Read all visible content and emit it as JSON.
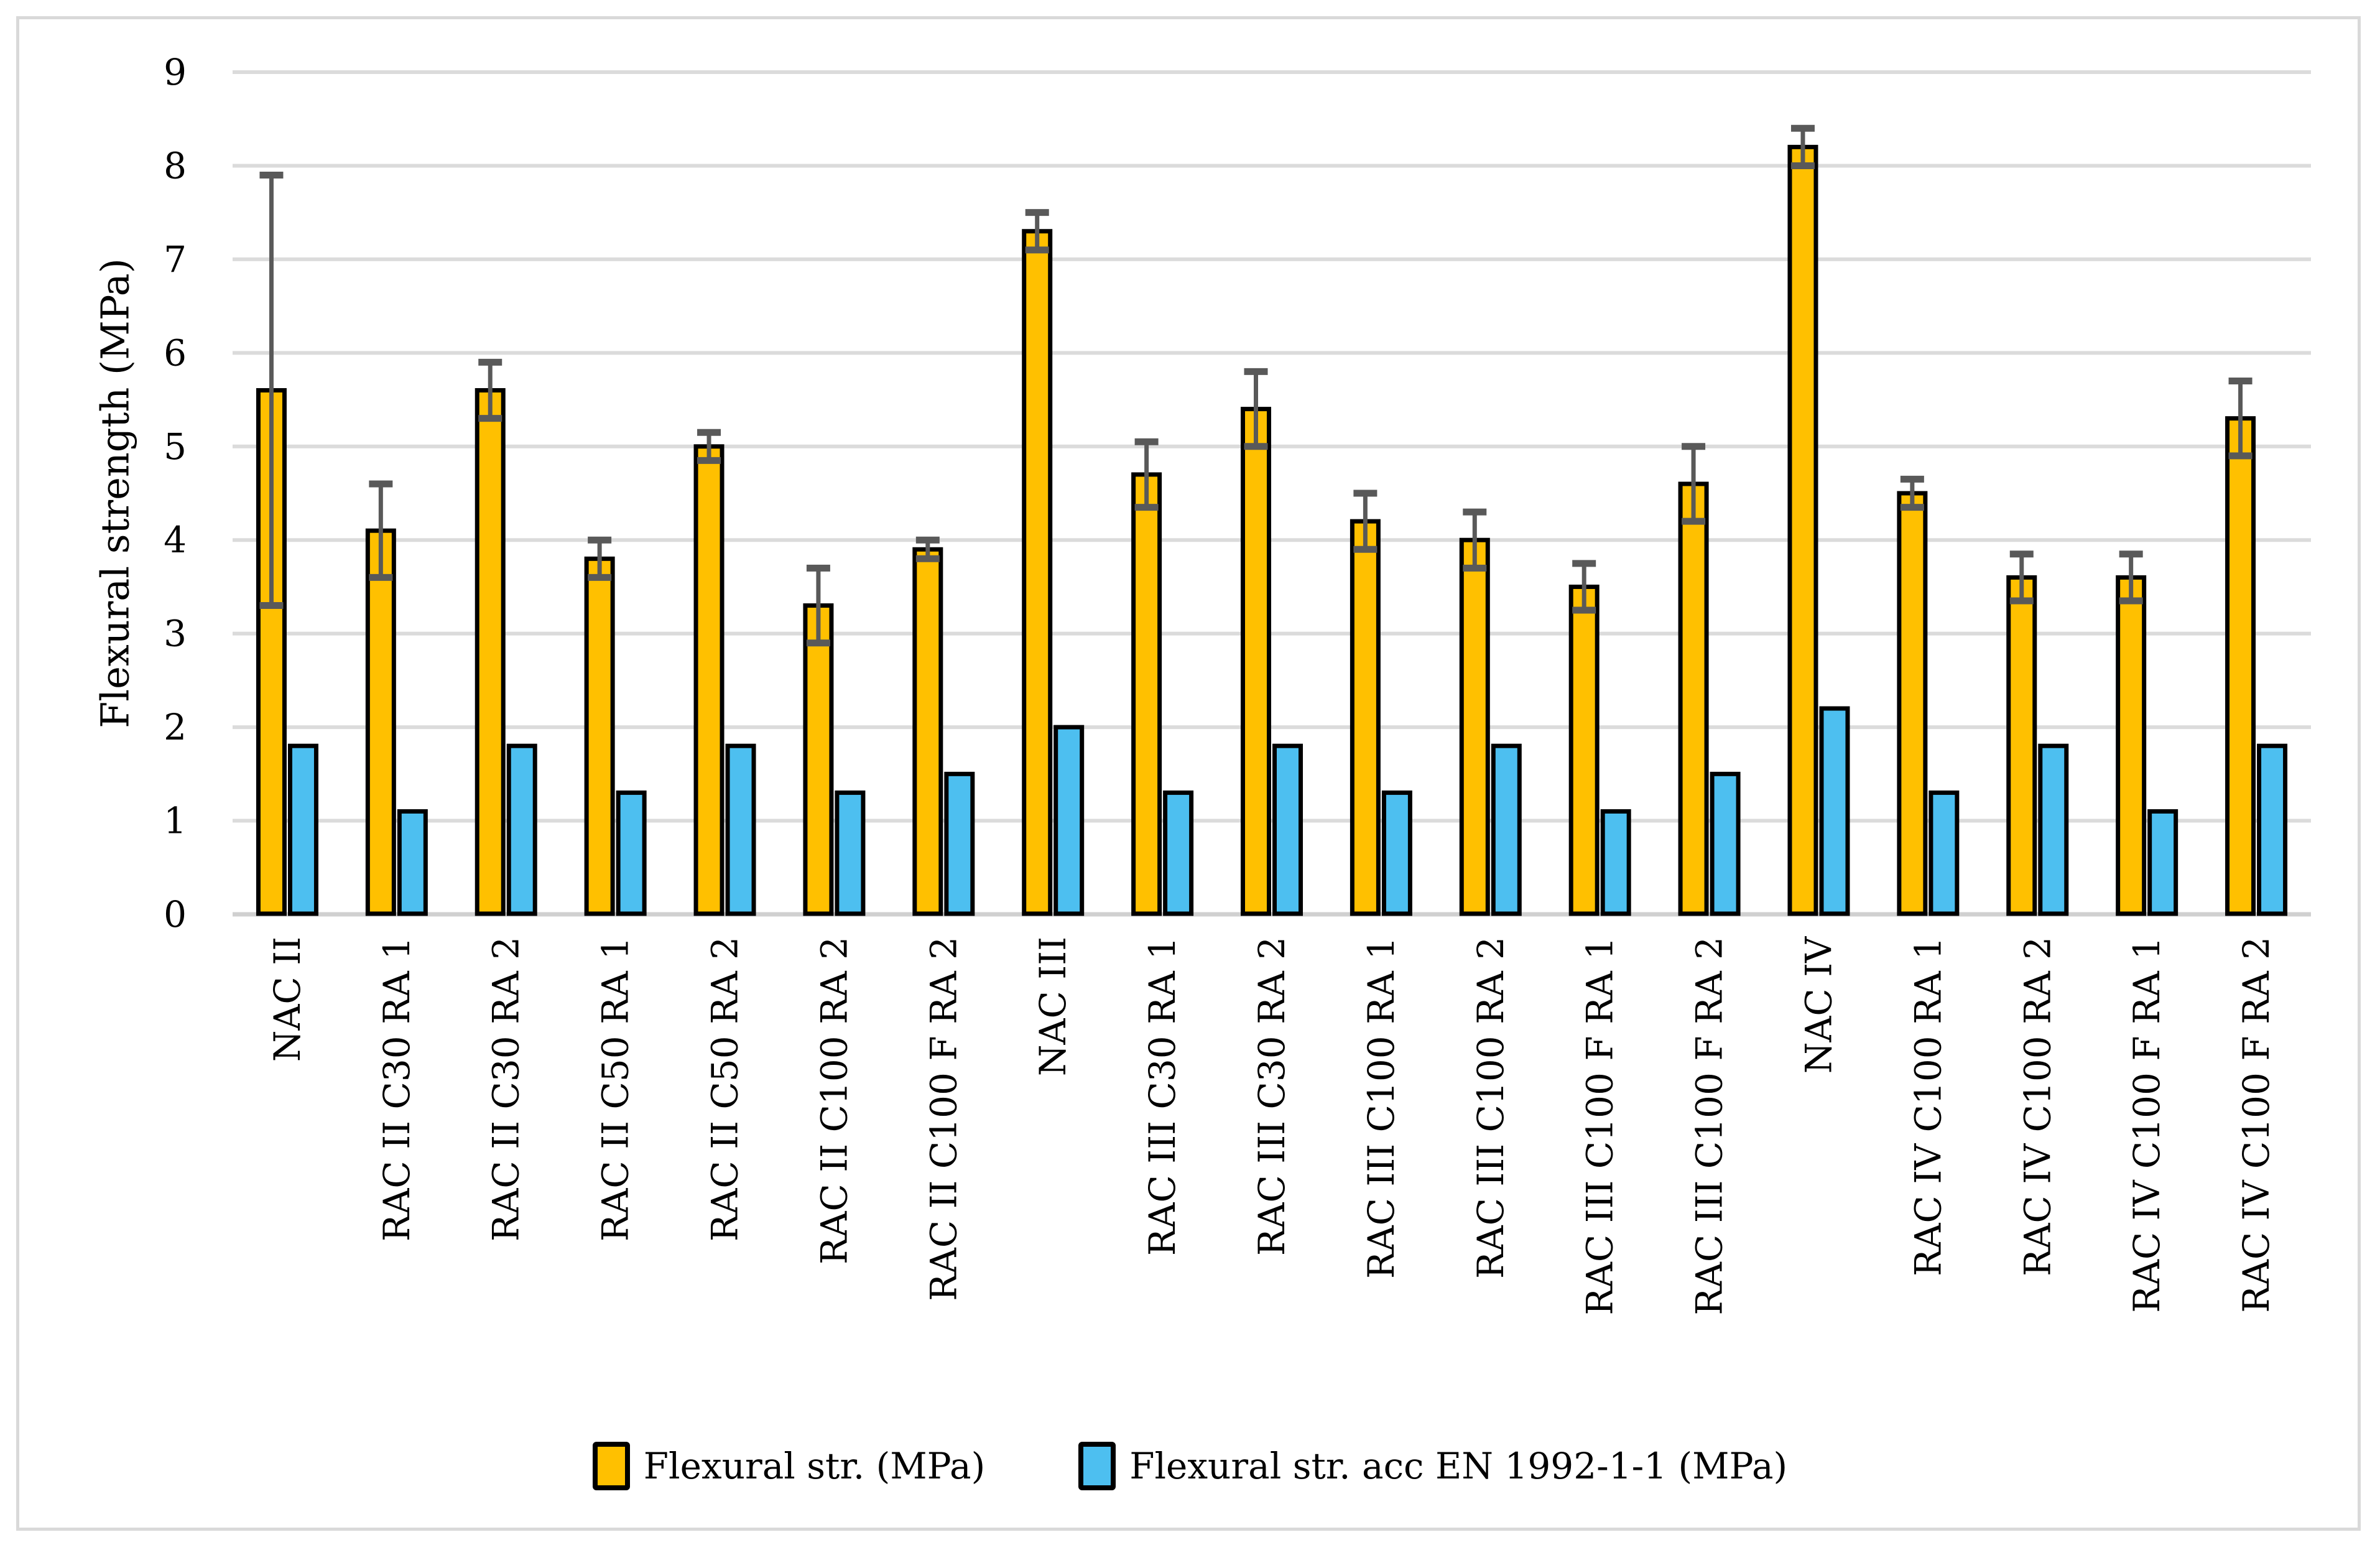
{
  "chart_data": {
    "type": "bar",
    "title": "",
    "xlabel": "",
    "ylabel": "Flexural strength (MPa)",
    "ylim": [
      0,
      9
    ],
    "yticks": [
      0,
      1,
      2,
      3,
      4,
      5,
      6,
      7,
      8,
      9
    ],
    "grid": true,
    "legend_position": "bottom",
    "categories": [
      "NAC II",
      "RAC II C30 RA 1",
      "RAC II C30 RA 2",
      "RAC II C50 RA 1",
      "RAC II C50 RA 2",
      "RAC II C100 RA 2",
      "RAC II C100 F RA 2",
      "NAC III",
      "RAC III C30 RA 1",
      "RAC III C30 RA 2",
      "RAC III C100 RA 1",
      "RAC III C100 RA 2",
      "RAC III C100 F RA 1",
      "RAC III C100 F RA 2",
      "NAC IV",
      "RAC IV C100 RA 1",
      "RAC IV C100 RA 2",
      "RAC IV C100 F RA 1",
      "RAC IV C100 F RA 2"
    ],
    "series": [
      {
        "name": "Flexural str. (MPa)",
        "color": "#FFC000",
        "values": [
          5.6,
          4.1,
          5.6,
          3.8,
          5.0,
          3.3,
          3.9,
          7.3,
          4.7,
          5.4,
          4.2,
          4.0,
          3.5,
          4.6,
          8.2,
          4.5,
          3.6,
          3.6,
          5.3
        ],
        "error_plus": [
          2.3,
          0.5,
          0.3,
          0.2,
          0.15,
          0.4,
          0.1,
          0.2,
          0.35,
          0.4,
          0.3,
          0.3,
          0.25,
          0.4,
          0.2,
          0.15,
          0.25,
          0.25,
          0.4
        ],
        "error_minus": [
          2.3,
          0.5,
          0.3,
          0.2,
          0.15,
          0.4,
          0.1,
          0.2,
          0.35,
          0.4,
          0.3,
          0.3,
          0.25,
          0.4,
          0.2,
          0.15,
          0.25,
          0.25,
          0.4
        ]
      },
      {
        "name": "Flexural str. acc EN 1992-1-1 (MPa)",
        "color": "#4DBFF0",
        "values": [
          1.8,
          1.1,
          1.8,
          1.3,
          1.8,
          1.3,
          1.5,
          2.0,
          1.3,
          1.8,
          1.3,
          1.8,
          1.1,
          1.5,
          2.2,
          1.3,
          1.8,
          1.1,
          1.8
        ],
        "error_plus": null,
        "error_minus": null
      }
    ],
    "colors": {
      "gridline": "#DBDBDB",
      "baseline": "#D0D0D0",
      "error_bar": "#595959",
      "bar_border": "#000000",
      "chart_border": "#D9D9D9",
      "text": "#000000"
    }
  }
}
